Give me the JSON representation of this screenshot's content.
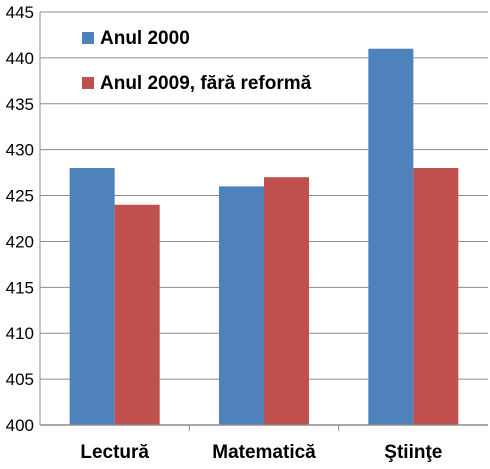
{
  "chart_data": {
    "type": "bar",
    "title": "",
    "xlabel": "",
    "ylabel": "",
    "categories": [
      "Lectură",
      "Matematică",
      "Ştiinţe"
    ],
    "series": [
      {
        "name": "Anul 2000",
        "values": [
          428,
          426,
          441
        ],
        "color": "#4F81BD"
      },
      {
        "name": "Anul 2009, fără reformă",
        "values": [
          424,
          427,
          428
        ],
        "color": "#C0504D"
      }
    ],
    "ylim": [
      400,
      445
    ],
    "y_ticks": [
      "400",
      "405",
      "410",
      "415",
      "420",
      "425",
      "430",
      "435",
      "440",
      "445"
    ],
    "grid": true,
    "legend_position": "top-left"
  }
}
